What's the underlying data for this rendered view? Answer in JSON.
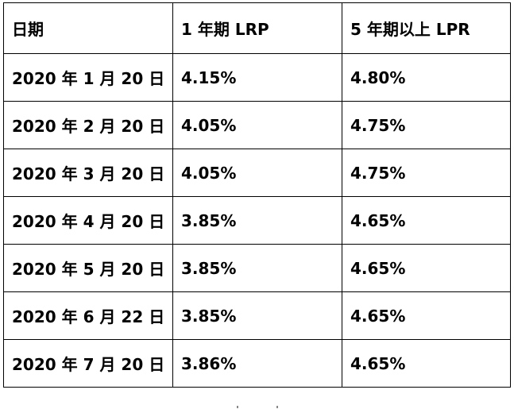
{
  "table": {
    "headers": [
      "日期",
      "1 年期 LRP",
      "5 年期以上 LPR"
    ],
    "rows": [
      [
        "2020 年 1 月 20 日",
        "4.15%",
        "4.80%"
      ],
      [
        "2020 年 2 月 20 日",
        "4.05%",
        "4.75%"
      ],
      [
        "2020 年 3 月 20 日",
        "4.05%",
        "4.75%"
      ],
      [
        "2020 年 4 月 20 日",
        "3.85%",
        "4.65%"
      ],
      [
        "2020 年 5 月 20 日",
        "3.85%",
        "4.65%"
      ],
      [
        "2020 年 6 月 22 日",
        "3.85%",
        "4.65%"
      ],
      [
        "2020 年 7 月 20 日",
        "3.86%",
        "4.65%"
      ]
    ]
  }
}
